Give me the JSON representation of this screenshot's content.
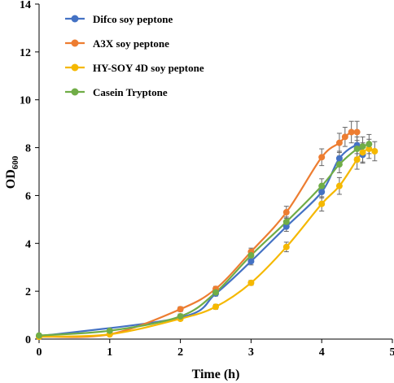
{
  "chart_data": {
    "type": "line",
    "xlabel": "Time (h)",
    "ylabel": {
      "base": "OD",
      "sub": "600"
    },
    "xlim": [
      0,
      5
    ],
    "ylim": [
      0,
      14
    ],
    "xticks": [
      "0",
      "1",
      "2",
      "3",
      "4",
      "5"
    ],
    "yticks": [
      "0",
      "2",
      "4",
      "6",
      "8",
      "10",
      "12",
      "14"
    ],
    "grid": false,
    "legend_position": "top-left",
    "series": [
      {
        "name": "Difco soy peptone",
        "color": "#4472C4",
        "x": [
          0,
          2,
          2.5,
          3,
          3.5,
          4,
          4.25,
          4.5,
          4.58
        ],
        "y": [
          0.12,
          0.9,
          1.9,
          3.25,
          4.7,
          6.15,
          7.55,
          8.1,
          7.7
        ],
        "err": [
          0.05,
          0.1,
          0.1,
          0.15,
          0.2,
          0.25,
          0.3,
          0.35,
          0.35
        ]
      },
      {
        "name": "A3X soy peptone",
        "color": "#ED7D31",
        "x": [
          0,
          1,
          2,
          2.5,
          3,
          3.5,
          4,
          4.25,
          4.33,
          4.42,
          4.5
        ],
        "y": [
          0.1,
          0.2,
          1.25,
          2.1,
          3.65,
          5.3,
          7.6,
          8.2,
          8.45,
          8.65,
          8.65
        ],
        "err": [
          0.05,
          0.05,
          0.1,
          0.1,
          0.15,
          0.25,
          0.35,
          0.4,
          0.4,
          0.45,
          0.45
        ]
      },
      {
        "name": "HY-SOY 4D soy peptone",
        "color": "#F5B800",
        "x": [
          0,
          1,
          2,
          2.5,
          3,
          3.5,
          4,
          4.25,
          4.5,
          4.58,
          4.67,
          4.75
        ],
        "y": [
          0.1,
          0.2,
          0.85,
          1.35,
          2.35,
          3.85,
          5.65,
          6.4,
          7.5,
          7.8,
          7.95,
          7.85
        ],
        "err": [
          0.05,
          0.05,
          0.08,
          0.1,
          0.1,
          0.2,
          0.3,
          0.35,
          0.4,
          0.4,
          0.4,
          0.4
        ]
      },
      {
        "name": "Casein Tryptone",
        "color": "#70AD47",
        "x": [
          0,
          1,
          2,
          2.5,
          3,
          3.5,
          4,
          4.25,
          4.5,
          4.58,
          4.67
        ],
        "y": [
          0.15,
          0.35,
          0.95,
          1.95,
          3.5,
          4.9,
          6.4,
          7.3,
          7.95,
          8.05,
          8.15
        ],
        "err": [
          0.05,
          0.05,
          0.1,
          0.1,
          0.15,
          0.2,
          0.3,
          0.35,
          0.35,
          0.4,
          0.4
        ]
      }
    ]
  }
}
